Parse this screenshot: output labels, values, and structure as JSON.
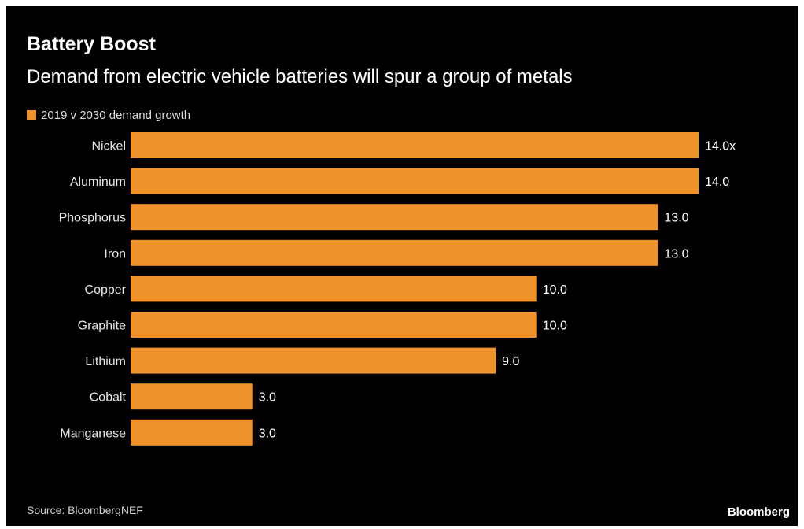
{
  "chart_data": {
    "type": "bar",
    "orientation": "horizontal",
    "title": "Battery Boost",
    "subtitle": "Demand from electric vehicle batteries will spur a group of metals",
    "legend": {
      "label": "2019 v 2030 demand growth",
      "placement": "top-left"
    },
    "categories": [
      "Nickel",
      "Aluminum",
      "Phosphorus",
      "Iron",
      "Copper",
      "Graphite",
      "Lithium",
      "Cobalt",
      "Manganese"
    ],
    "values": [
      14.0,
      14.0,
      13.0,
      13.0,
      10.0,
      10.0,
      9.0,
      3.0,
      3.0
    ],
    "value_labels": [
      "14.0x",
      "14.0",
      "13.0",
      "13.0",
      "10.0",
      "10.0",
      "9.0",
      "3.0",
      "3.0"
    ],
    "xlim": [
      0,
      14.0
    ],
    "grid": false,
    "xlabel": "",
    "ylabel": "",
    "colors": {
      "bar": "#f0922b",
      "background": "#000000"
    }
  },
  "footer": {
    "source": "Source: BloombergNEF",
    "brand": "Bloomberg"
  }
}
